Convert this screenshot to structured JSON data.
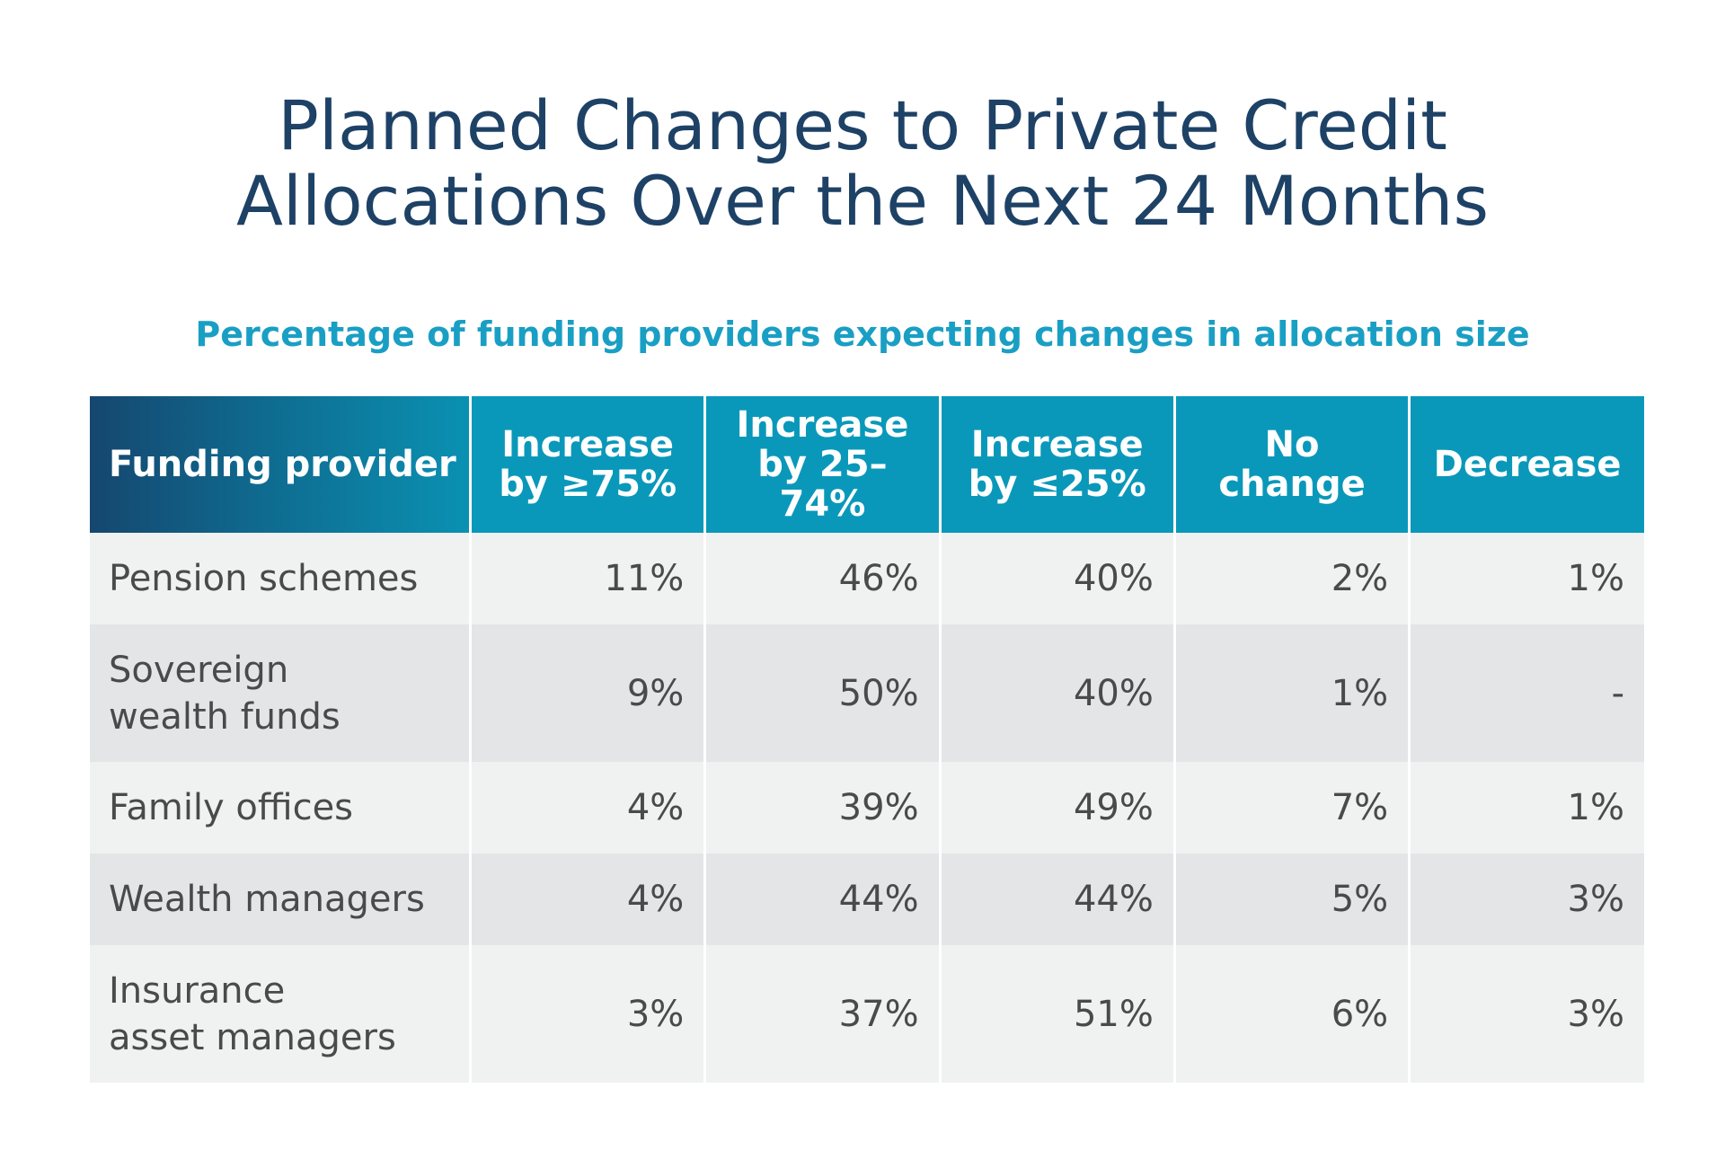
{
  "title_lines": [
    "Planned Changes to Private Credit",
    "Allocations Over the Next 24 Months"
  ],
  "subtitle": "Percentage of funding providers expecting changes in allocation size",
  "colors": {
    "title": "#1e4166",
    "subtitle": "#1a9fc4",
    "header_bg": "#0a98ba",
    "header_first_dark": "#15476f",
    "row_light": "#f0f1f1",
    "row_dark": "#e4e5e7"
  },
  "chart_data": {
    "type": "table",
    "title": "Planned Changes to Private Credit Allocations Over the Next 24 Months",
    "subtitle": "Percentage of funding providers expecting changes in allocation size",
    "header_first": "Funding provider",
    "columns": [
      [
        "Increase",
        "by ≥75%"
      ],
      [
        "Increase",
        "by 25–74%"
      ],
      [
        "Increase",
        "by ≤25%"
      ],
      [
        "No",
        "change"
      ],
      [
        "Decrease"
      ]
    ],
    "rows": [
      {
        "label": [
          "Pension schemes"
        ],
        "values": [
          "11%",
          "46%",
          "40%",
          "2%",
          "1%"
        ]
      },
      {
        "label": [
          "Sovereign",
          "wealth funds"
        ],
        "values": [
          "9%",
          "50%",
          "40%",
          "1%",
          "-"
        ]
      },
      {
        "label": [
          "Family offices"
        ],
        "values": [
          "4%",
          "39%",
          "49%",
          "7%",
          "1%"
        ]
      },
      {
        "label": [
          "Wealth managers"
        ],
        "values": [
          "4%",
          "44%",
          "44%",
          "5%",
          "3%"
        ]
      },
      {
        "label": [
          "Insurance",
          "asset managers"
        ],
        "values": [
          "3%",
          "37%",
          "51%",
          "6%",
          "3%"
        ]
      }
    ]
  }
}
